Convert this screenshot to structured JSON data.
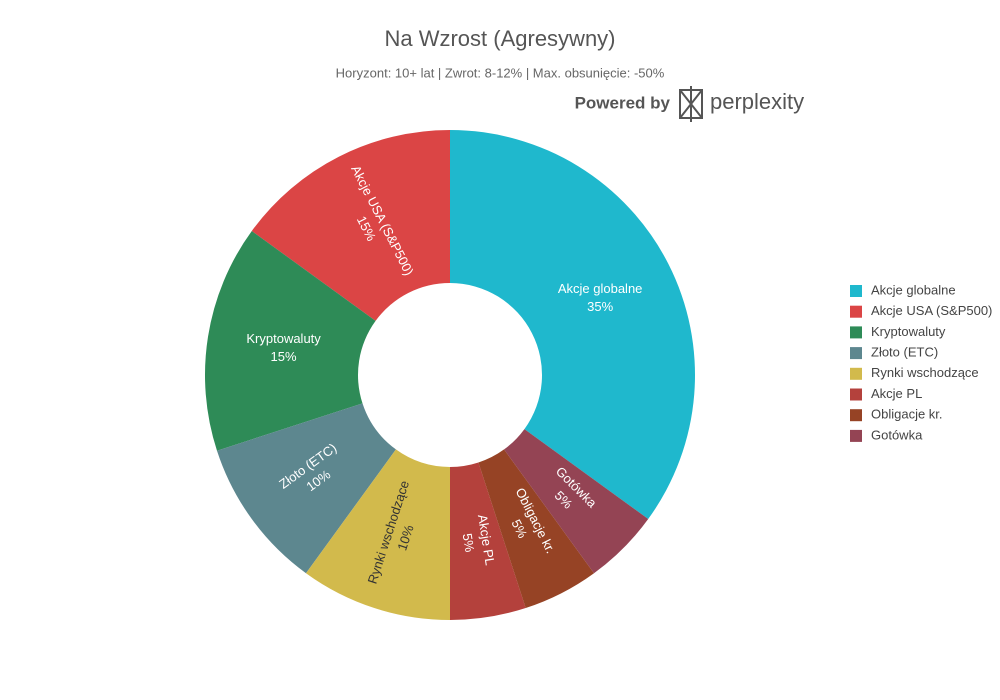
{
  "chart_data": {
    "type": "pie",
    "title": "Na Wzrost (Agresywny)",
    "subtitle": "Horyzont: 10+ lat | Zwrot: 8-12% | Max. obsunięcie: -50%",
    "attribution": "Powered by",
    "brand": "perplexity",
    "categories": [
      "Akcje globalne",
      "Akcje USA (S&P500)",
      "Kryptowaluty",
      "Złoto (ETC)",
      "Rynki wschodzące",
      "Akcje PL",
      "Obligacje kr.",
      "Gotówka"
    ],
    "values": [
      35,
      15,
      15,
      10,
      10,
      5,
      5,
      5
    ],
    "value_labels": [
      "35%",
      "15%",
      "15%",
      "10%",
      "10%",
      "5%",
      "5%",
      "5%"
    ],
    "colors": [
      "#1fb8cd",
      "#db4545",
      "#2e8b57",
      "#5d878f",
      "#d2ba4c",
      "#b4413c",
      "#964325",
      "#944454"
    ],
    "hole": true,
    "legend": "right"
  }
}
